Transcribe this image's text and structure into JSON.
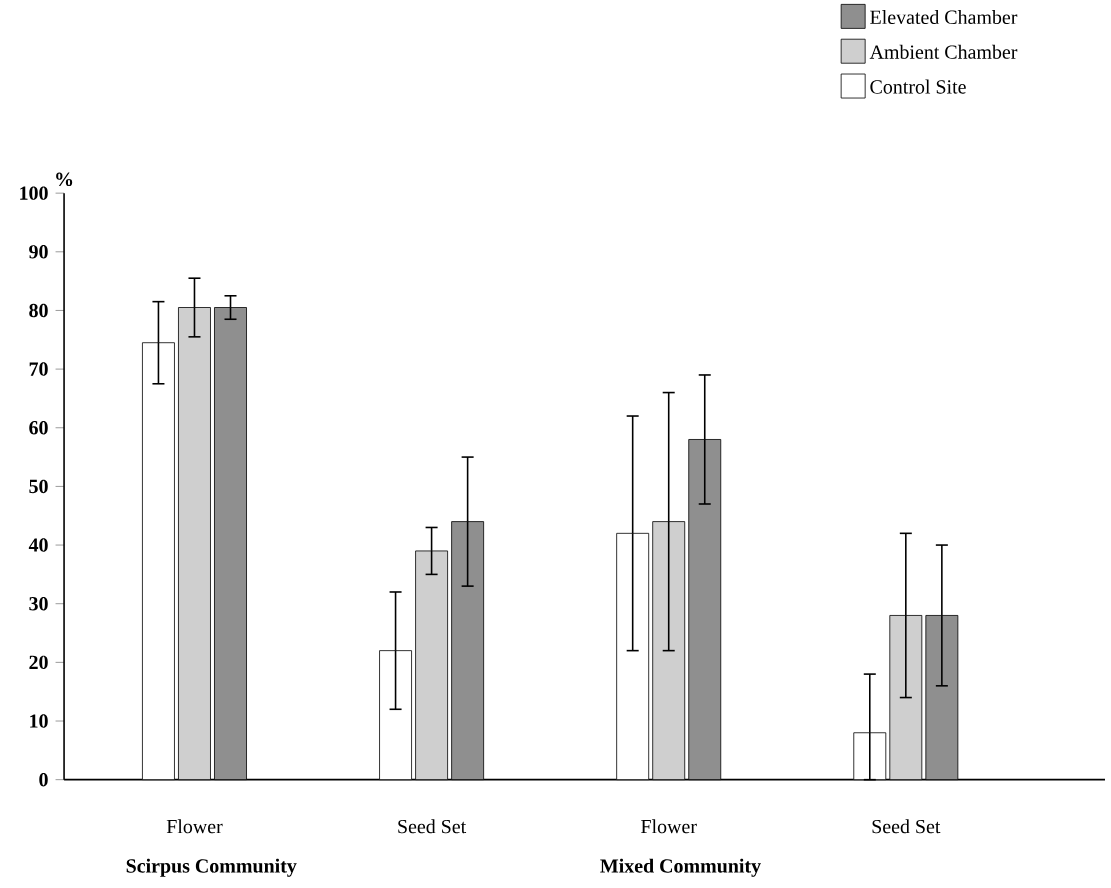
{
  "chart_data": {
    "type": "bar",
    "ylabel": "%",
    "categories": [
      "Flower",
      "Seed Set",
      "Flower",
      "Seed Set"
    ],
    "series": [
      {
        "name": "Control Site",
        "color": "#ffffff",
        "values": [
          74.5,
          22,
          42,
          8
        ],
        "errors": [
          7,
          10,
          20,
          [
            0,
            18
          ]
        ]
      },
      {
        "name": "Ambient Chamber",
        "color": "#cfcfcf",
        "values": [
          80.5,
          39,
          44,
          28
        ],
        "errors": [
          5,
          4,
          22,
          14
        ]
      },
      {
        "name": "Elevated Chamber",
        "color": "#8f8f8f",
        "values": [
          80.5,
          44,
          58,
          28
        ],
        "errors": [
          2,
          11,
          11,
          12
        ]
      }
    ],
    "ylim": [
      0,
      100
    ],
    "yticks": [
      0,
      10,
      20,
      30,
      40,
      50,
      60,
      70,
      80,
      90,
      100
    ],
    "grid": false,
    "legend": "top right",
    "annotations": [
      "Scirpus Community",
      "Mixed Community"
    ]
  }
}
